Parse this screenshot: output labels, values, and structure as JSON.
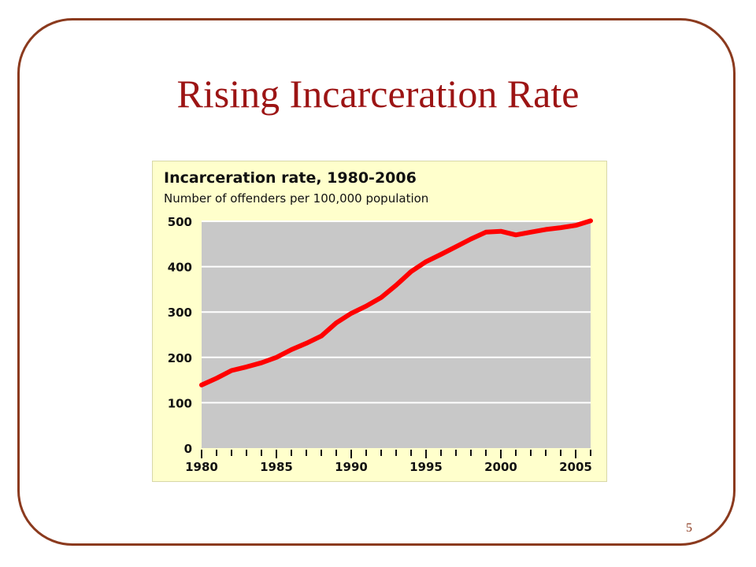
{
  "slide": {
    "title": "Rising Incarceration Rate",
    "page_number": "5"
  },
  "colors": {
    "frame": "#8b3a1e",
    "title": "#9c1414",
    "chart_background": "#ffffcc",
    "plot_background": "#c8c8c8",
    "line": "#ff0000"
  },
  "chart_data": {
    "type": "line",
    "title": "Incarceration rate, 1980-2006",
    "subtitle": "Number of offenders per 100,000 population",
    "xlabel": "",
    "ylabel": "",
    "xlim": [
      1980,
      2006
    ],
    "ylim": [
      0,
      500
    ],
    "y_ticks": [
      "0",
      "100",
      "200",
      "300",
      "400",
      "500"
    ],
    "x_tick_labels": [
      "1980",
      "1985",
      "1990",
      "1995",
      "2000",
      "2005"
    ],
    "grid": true,
    "legend": "none",
    "series": [
      {
        "color": "#ff0000",
        "x": [
          1980,
          1981,
          1982,
          1983,
          1984,
          1985,
          1986,
          1987,
          1988,
          1989,
          1990,
          1991,
          1992,
          1993,
          1994,
          1995,
          1996,
          1997,
          1998,
          1999,
          2000,
          2001,
          2002,
          2003,
          2004,
          2005,
          2006
        ],
        "values": [
          139,
          154,
          171,
          179,
          188,
          200,
          217,
          231,
          247,
          276,
          297,
          313,
          332,
          359,
          389,
          411,
          427,
          444,
          461,
          476,
          478,
          470,
          476,
          482,
          486,
          491,
          501
        ]
      }
    ]
  }
}
